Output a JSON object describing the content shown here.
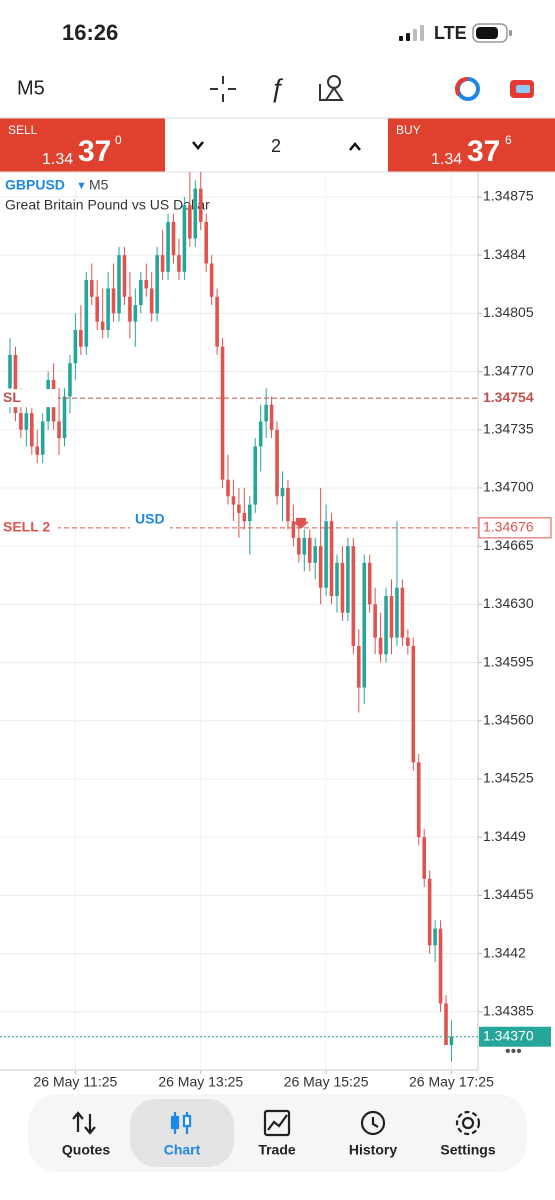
{
  "status_bar": {
    "time": "16:26",
    "network": "LTE"
  },
  "toolbar": {
    "timeframe": "M5"
  },
  "trade_bar": {
    "sell": {
      "label": "SELL",
      "price_prefix": "1.34",
      "price_big": "37",
      "price_sup": "0"
    },
    "volume": "2",
    "buy": {
      "label": "BUY",
      "price_prefix": "1.34",
      "price_big": "37",
      "price_sup": "6"
    }
  },
  "chart_data": {
    "type": "candlestick",
    "symbol": "GBPUSD",
    "timeframe": "M5",
    "description": "Great Britain Pound vs US Dollar",
    "up_color": "#26a69a",
    "down_color": "#e0534f",
    "ohlc": [
      [
        1.3476,
        1.3479,
        1.34745,
        1.3478
      ],
      [
        1.3478,
        1.34785,
        1.3474,
        1.34745
      ],
      [
        1.34745,
        1.3476,
        1.3473,
        1.34735
      ],
      [
        1.34735,
        1.3475,
        1.34725,
        1.34745
      ],
      [
        1.34745,
        1.34748,
        1.3472,
        1.34725
      ],
      [
        1.34725,
        1.34735,
        1.34715,
        1.3472
      ],
      [
        1.3472,
        1.34745,
        1.34715,
        1.3474
      ],
      [
        1.3474,
        1.3477,
        1.34735,
        1.34765
      ],
      [
        1.34765,
        1.34775,
        1.34735,
        1.3474
      ],
      [
        1.3474,
        1.3476,
        1.3472,
        1.3473
      ],
      [
        1.3473,
        1.3476,
        1.34725,
        1.34755
      ],
      [
        1.34755,
        1.3478,
        1.34745,
        1.34775
      ],
      [
        1.34775,
        1.34805,
        1.34765,
        1.34795
      ],
      [
        1.34795,
        1.3481,
        1.3478,
        1.34785
      ],
      [
        1.34785,
        1.3483,
        1.3478,
        1.34825
      ],
      [
        1.34825,
        1.34835,
        1.3481,
        1.34815
      ],
      [
        1.34815,
        1.34825,
        1.34795,
        1.348
      ],
      [
        1.348,
        1.3482,
        1.3479,
        1.34795
      ],
      [
        1.34795,
        1.3483,
        1.3479,
        1.3482
      ],
      [
        1.3482,
        1.34835,
        1.348,
        1.34805
      ],
      [
        1.34805,
        1.34845,
        1.348,
        1.3484
      ],
      [
        1.3484,
        1.34845,
        1.3481,
        1.34815
      ],
      [
        1.34815,
        1.3483,
        1.3479,
        1.348
      ],
      [
        1.348,
        1.3482,
        1.34785,
        1.3481
      ],
      [
        1.3481,
        1.3483,
        1.34805,
        1.34825
      ],
      [
        1.34825,
        1.34835,
        1.34815,
        1.3482
      ],
      [
        1.3482,
        1.3483,
        1.348,
        1.34805
      ],
      [
        1.34805,
        1.34845,
        1.348,
        1.3484
      ],
      [
        1.3484,
        1.34855,
        1.34825,
        1.3483
      ],
      [
        1.3483,
        1.34865,
        1.34825,
        1.3486
      ],
      [
        1.3486,
        1.34865,
        1.34835,
        1.3484
      ],
      [
        1.3484,
        1.3485,
        1.34825,
        1.3483
      ],
      [
        1.3483,
        1.34875,
        1.34825,
        1.3487
      ],
      [
        1.3487,
        1.3489,
        1.34845,
        1.3485
      ],
      [
        1.3485,
        1.34885,
        1.34845,
        1.3488
      ],
      [
        1.3488,
        1.3489,
        1.34855,
        1.3486
      ],
      [
        1.3486,
        1.34865,
        1.3483,
        1.34835
      ],
      [
        1.34835,
        1.3484,
        1.3481,
        1.34815
      ],
      [
        1.34815,
        1.3482,
        1.3478,
        1.34785
      ],
      [
        1.34785,
        1.3479,
        1.347,
        1.34705
      ],
      [
        1.34705,
        1.3472,
        1.3469,
        1.34695
      ],
      [
        1.34695,
        1.34705,
        1.3468,
        1.3469
      ],
      [
        1.3469,
        1.347,
        1.3467,
        1.34685
      ],
      [
        1.34685,
        1.347,
        1.34675,
        1.3468
      ],
      [
        1.3468,
        1.34695,
        1.3466,
        1.3469
      ],
      [
        1.3469,
        1.3473,
        1.34685,
        1.34725
      ],
      [
        1.34725,
        1.3475,
        1.3471,
        1.3474
      ],
      [
        1.3474,
        1.3476,
        1.3473,
        1.3475
      ],
      [
        1.3475,
        1.34755,
        1.3473,
        1.34735
      ],
      [
        1.34735,
        1.3474,
        1.3469,
        1.34695
      ],
      [
        1.34695,
        1.3471,
        1.3468,
        1.347
      ],
      [
        1.347,
        1.34705,
        1.34675,
        1.3468
      ],
      [
        1.3468,
        1.3469,
        1.34665,
        1.3467
      ],
      [
        1.3467,
        1.3468,
        1.34655,
        1.3466
      ],
      [
        1.3466,
        1.34675,
        1.3465,
        1.3467
      ],
      [
        1.3467,
        1.34675,
        1.3465,
        1.34655
      ],
      [
        1.34655,
        1.3467,
        1.34645,
        1.34665
      ],
      [
        1.34665,
        1.347,
        1.3463,
        1.3464
      ],
      [
        1.3464,
        1.3469,
        1.34635,
        1.3468
      ],
      [
        1.3468,
        1.34685,
        1.3463,
        1.34635
      ],
      [
        1.34635,
        1.3466,
        1.34625,
        1.34655
      ],
      [
        1.34655,
        1.34665,
        1.3462,
        1.34625
      ],
      [
        1.34625,
        1.3467,
        1.3462,
        1.34665
      ],
      [
        1.34665,
        1.3467,
        1.346,
        1.34605
      ],
      [
        1.34605,
        1.34615,
        1.34565,
        1.3458
      ],
      [
        1.3458,
        1.3466,
        1.3457,
        1.34655
      ],
      [
        1.34655,
        1.3466,
        1.34625,
        1.3463
      ],
      [
        1.3463,
        1.3464,
        1.346,
        1.3461
      ],
      [
        1.3461,
        1.34625,
        1.34595,
        1.346
      ],
      [
        1.346,
        1.3464,
        1.34595,
        1.34635
      ],
      [
        1.34635,
        1.34645,
        1.346,
        1.3461
      ],
      [
        1.3461,
        1.3468,
        1.34605,
        1.3464
      ],
      [
        1.3464,
        1.34645,
        1.34605,
        1.3461
      ],
      [
        1.3461,
        1.34615,
        1.346,
        1.34605
      ],
      [
        1.34605,
        1.3461,
        1.3453,
        1.34535
      ],
      [
        1.34535,
        1.3454,
        1.34485,
        1.3449
      ],
      [
        1.3449,
        1.34495,
        1.3446,
        1.34465
      ],
      [
        1.34465,
        1.3447,
        1.3442,
        1.34425
      ],
      [
        1.34425,
        1.3444,
        1.34415,
        1.34435
      ],
      [
        1.34435,
        1.3444,
        1.34385,
        1.3439
      ],
      [
        1.3439,
        1.34395,
        1.34365,
        1.34365
      ],
      [
        1.34365,
        1.3438,
        1.34355,
        1.3437
      ]
    ],
    "ylim": [
      1.3435,
      1.3489
    ],
    "yticks": [
      1.34875,
      1.3484,
      1.34805,
      {
        "value": 1.3477,
        "label": "1.34770"
      },
      1.34735,
      {
        "value": 1.347,
        "label": "1.34700"
      },
      1.34665,
      {
        "value": 1.3463,
        "label": "1.34630"
      },
      1.34595,
      {
        "value": 1.3456,
        "label": "1.34560"
      },
      1.34525,
      1.3449,
      1.34455,
      1.3442,
      1.34385
    ],
    "xticks": [
      {
        "value": 12,
        "label": "26 May 11:25"
      },
      {
        "value": 35,
        "label": "26 May 13:25"
      },
      {
        "value": 58,
        "label": "26 May 15:25"
      },
      {
        "value": 81,
        "label": "26 May 17:25"
      }
    ],
    "levels": [
      {
        "name": "SL",
        "value": 1.34754,
        "color": "#c0504d"
      },
      {
        "name": "SELL 2",
        "currency": "USD",
        "value": 1.34676,
        "color": "#e0534f"
      },
      {
        "value": {
          "value": 1.3437,
          "label": "1.34370"
        },
        "color": "#26a69a"
      }
    ]
  },
  "nav": {
    "items": [
      "Quotes",
      "Chart",
      "Trade",
      "History",
      "Settings"
    ],
    "active": "Chart"
  }
}
